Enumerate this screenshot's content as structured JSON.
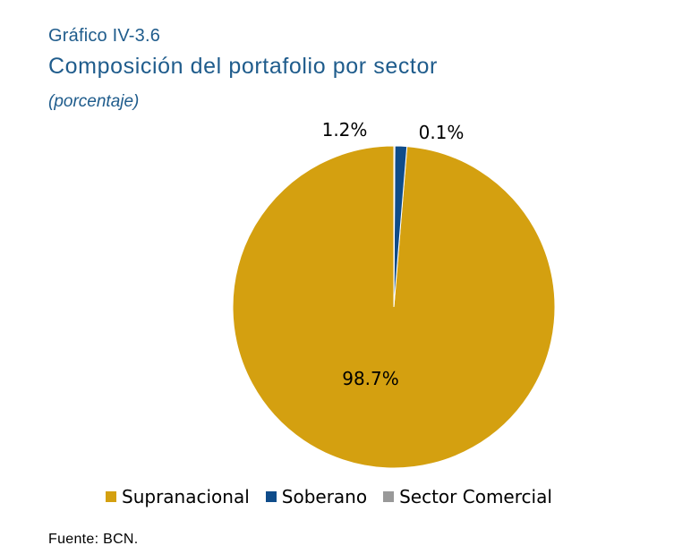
{
  "header": {
    "figure_number": "Gráfico IV-3.6",
    "title": "Composición del portafolio por sector",
    "subtitle": "(porcentaje)"
  },
  "chart_data": {
    "type": "pie",
    "categories": [
      "Supranacional",
      "Soberano",
      "Sector Comercial"
    ],
    "values": [
      98.7,
      1.2,
      0.1
    ],
    "data_labels": [
      "98.7%",
      "1.2%",
      "0.1%"
    ],
    "colors": [
      "#d4a010",
      "#0f4c8a",
      "#999999"
    ],
    "start_angle": "12 o'clock",
    "direction": "counter-clockwise",
    "legend_position": "bottom"
  },
  "legend": {
    "items": [
      {
        "label": "Supranacional",
        "color": "#d4a010"
      },
      {
        "label": "Soberano",
        "color": "#0f4c8a"
      },
      {
        "label": "Sector Comercial",
        "color": "#999999"
      }
    ]
  },
  "footer": {
    "source": "Fuente: BCN."
  }
}
